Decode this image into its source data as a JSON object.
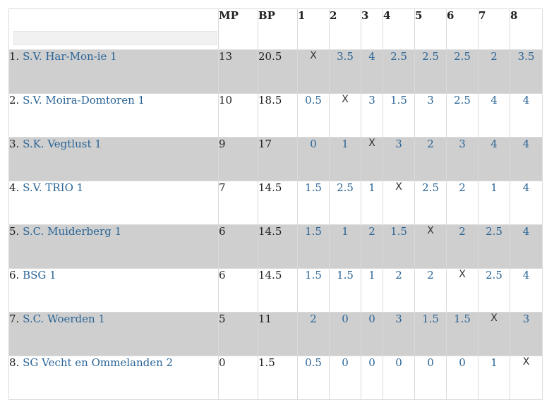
{
  "search": {
    "placeholder": ""
  },
  "headers": [
    "MP",
    "BP",
    "1",
    "2",
    "3",
    "4",
    "5",
    "6",
    "7",
    "8"
  ],
  "rows": [
    {
      "rank": "1.",
      "team": "S.V. Har-Mon-ie 1",
      "mp": "13",
      "bp": "20.5",
      "scores": [
        "X",
        "3.5",
        "4",
        "2.5",
        "2.5",
        "2.5",
        "2",
        "3.5"
      ]
    },
    {
      "rank": "2.",
      "team": "S.V. Moira-Domtoren 1",
      "mp": "10",
      "bp": "18.5",
      "scores": [
        "0.5",
        "X",
        "3",
        "1.5",
        "3",
        "2.5",
        "4",
        "4"
      ]
    },
    {
      "rank": "3.",
      "team": "S.K. Vegtlust 1",
      "mp": "9",
      "bp": "17",
      "scores": [
        "0",
        "1",
        "X",
        "3",
        "2",
        "3",
        "4",
        "4"
      ]
    },
    {
      "rank": "4.",
      "team": "S.V. TRIO 1",
      "mp": "7",
      "bp": "14.5",
      "scores": [
        "1.5",
        "2.5",
        "1",
        "X",
        "2.5",
        "2",
        "1",
        "4"
      ]
    },
    {
      "rank": "5.",
      "team": "S.C. Muiderberg 1",
      "mp": "6",
      "bp": "14.5",
      "scores": [
        "1.5",
        "1",
        "2",
        "1.5",
        "X",
        "2",
        "2.5",
        "4"
      ]
    },
    {
      "rank": "6.",
      "team": "BSG 1",
      "mp": "6",
      "bp": "14.5",
      "scores": [
        "1.5",
        "1.5",
        "1",
        "2",
        "2",
        "X",
        "2.5",
        "4"
      ]
    },
    {
      "rank": "7.",
      "team": "S.C. Woerden 1",
      "mp": "5",
      "bp": "11",
      "scores": [
        "2",
        "0",
        "0",
        "3",
        "1.5",
        "1.5",
        "X",
        "3"
      ]
    },
    {
      "rank": "8.",
      "team": "SG Vecht en Ommelanden 2",
      "mp": "0",
      "bp": "1.5",
      "scores": [
        "0.5",
        "0",
        "0",
        "0",
        "0",
        "0",
        "1",
        "X"
      ]
    }
  ],
  "colors": {
    "link": "#2a6496",
    "odd_row": "#cfcfcf",
    "even_row": "#ffffff",
    "border": "#dadada"
  }
}
